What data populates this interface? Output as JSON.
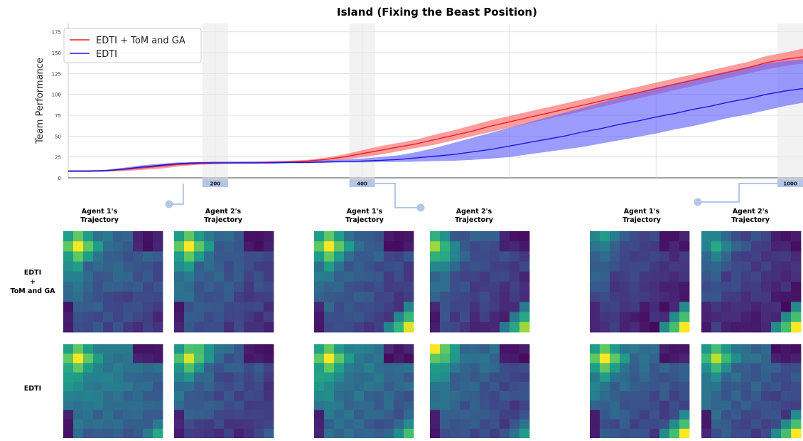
{
  "chart_data": {
    "type": "line",
    "title": "Island (Fixing the Beast Position)",
    "xlabel": "",
    "ylabel": "Team Performance",
    "xlim": [
      0,
      1000
    ],
    "ylim": [
      0,
      185
    ],
    "yticks": [
      0,
      25,
      50,
      75,
      100,
      125,
      150,
      175
    ],
    "grid": true,
    "legend": "top-left",
    "highlights": [
      {
        "x": 200,
        "label": "200"
      },
      {
        "x": 400,
        "label": "400"
      },
      {
        "x": 1000,
        "label": "1000"
      }
    ],
    "x": [
      0,
      25,
      50,
      75,
      100,
      125,
      150,
      175,
      200,
      225,
      250,
      275,
      300,
      325,
      350,
      375,
      400,
      425,
      450,
      475,
      500,
      525,
      550,
      575,
      600,
      625,
      650,
      675,
      700,
      725,
      750,
      775,
      800,
      825,
      850,
      875,
      900,
      925,
      950,
      975,
      1000
    ],
    "series": [
      {
        "name": "EDTI + ToM and GA",
        "color": "#e8202a",
        "band_color": "#ff5a5a",
        "values": [
          8,
          8,
          8.5,
          10,
          12,
          14,
          16,
          17,
          17.5,
          18,
          18,
          18.5,
          19,
          20,
          22,
          25,
          29,
          33,
          37,
          41,
          46,
          51,
          56,
          62,
          67,
          72,
          77,
          82,
          87,
          92,
          97,
          102,
          107,
          112,
          117,
          122,
          127,
          132,
          138,
          142,
          145
        ],
        "lower": [
          7,
          7,
          7.5,
          8,
          9.5,
          11,
          13.5,
          15.5,
          16.5,
          17,
          17,
          17.5,
          18,
          18.5,
          20,
          22,
          25,
          28,
          32,
          36,
          40,
          45,
          50,
          55,
          60,
          65,
          70,
          75,
          80,
          85,
          90,
          95,
          100,
          105,
          110,
          115,
          120,
          125,
          130,
          134,
          137
        ],
        "upper": [
          9,
          9,
          9.5,
          11,
          13.5,
          16,
          17.5,
          18.5,
          19,
          19,
          19.5,
          20,
          20.5,
          21.5,
          24,
          28,
          33,
          38,
          42,
          46,
          52,
          57,
          63,
          69,
          74,
          79,
          84,
          89,
          94,
          99,
          104,
          109,
          114,
          119,
          124,
          129,
          134,
          139,
          146,
          150,
          155
        ]
      },
      {
        "name": "EDTI",
        "color": "#1a1ae0",
        "band_color": "#5a5aff",
        "values": [
          8,
          8,
          8.5,
          10.5,
          13,
          15,
          17,
          18,
          18,
          18,
          18,
          18,
          18.5,
          18.5,
          19,
          19.5,
          20,
          21,
          22,
          24,
          26,
          28,
          31,
          34,
          38,
          42,
          46,
          50,
          55,
          59,
          64,
          68,
          73,
          77,
          82,
          86,
          91,
          95,
          100,
          104,
          107
        ],
        "lower": [
          7,
          7,
          7.5,
          9,
          11,
          13,
          15.5,
          16.5,
          17,
          17,
          17,
          17,
          17.5,
          17.5,
          18,
          18.5,
          18.5,
          19,
          19,
          19.5,
          20,
          20.5,
          21.5,
          23,
          25,
          28,
          31,
          34,
          37,
          41,
          45,
          49,
          53,
          58,
          62,
          67,
          72,
          76,
          81,
          86,
          90
        ],
        "upper": [
          9,
          9,
          9.5,
          12,
          15,
          17,
          18.5,
          19,
          19.5,
          19.5,
          19.5,
          19.5,
          20,
          20,
          21,
          22,
          23,
          25,
          27,
          31,
          36,
          42,
          48,
          54,
          60,
          66,
          72,
          78,
          84,
          90,
          96,
          102,
          108,
          113,
          118,
          123,
          128,
          133,
          137,
          140,
          142
        ]
      }
    ]
  },
  "figure": {
    "column_labels": [
      "Agent 1's\nTrajectory",
      "Agent 2's\nTrajectory"
    ],
    "row_labels": [
      {
        "id": "tom",
        "label": "EDTI\n+\nToM and GA"
      },
      {
        "id": "edti",
        "label": "EDTI"
      }
    ]
  },
  "colors": {
    "highlight_bar": "#b4c6e7",
    "highlight_band": "#e6e6e6",
    "connector": "#b4c6e7",
    "heatmap_scale": [
      "#440154",
      "#3b528b",
      "#21918c",
      "#5ec962",
      "#fde725"
    ]
  }
}
